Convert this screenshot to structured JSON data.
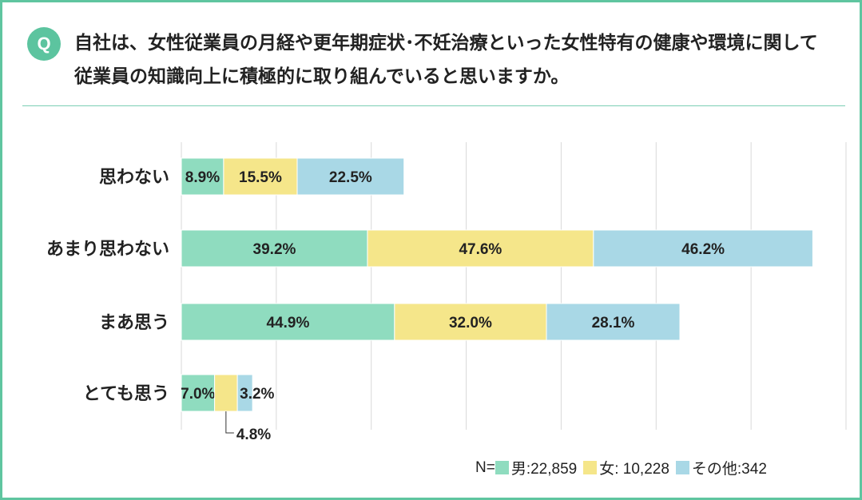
{
  "badge": "Q",
  "question": "自社は、女性従業員の月経や更年期症状･不妊治療といった女性特有の健康や環境に関して従業員の知識向上に積極的に取り組んでいると思いますか。",
  "colors": {
    "accent": "#5cc49f",
    "male": "#8fdcbf",
    "female": "#f5e68a",
    "other": "#a9d8e6",
    "grid": "#d9d9d9"
  },
  "legend": {
    "prefix": "N=",
    "items": [
      {
        "label": "男:22,859",
        "color": "#8fdcbf"
      },
      {
        "label": "女: 10,228",
        "color": "#f5e68a"
      },
      {
        "label": "その他:342",
        "color": "#a9d8e6"
      }
    ]
  },
  "chart_data": {
    "type": "bar",
    "orientation": "horizontal-stacked",
    "categories": [
      "思わない",
      "あまり思わない",
      "まあ思う",
      "とても思う"
    ],
    "series": [
      {
        "name": "男",
        "values": [
          8.9,
          39.2,
          44.9,
          7.0
        ]
      },
      {
        "name": "女",
        "values": [
          15.5,
          47.6,
          32.0,
          4.8
        ]
      },
      {
        "name": "その他",
        "values": [
          22.5,
          46.2,
          28.1,
          3.2
        ]
      }
    ],
    "labels": [
      [
        "8.9%",
        "15.5%",
        "22.5%"
      ],
      [
        "39.2%",
        "47.6%",
        "46.2%"
      ],
      [
        "44.9%",
        "32.0%",
        "28.1%"
      ],
      [
        "7.0%",
        "4.8%",
        "3.2%"
      ]
    ],
    "unit": "%",
    "xlim": [
      0,
      140
    ]
  }
}
